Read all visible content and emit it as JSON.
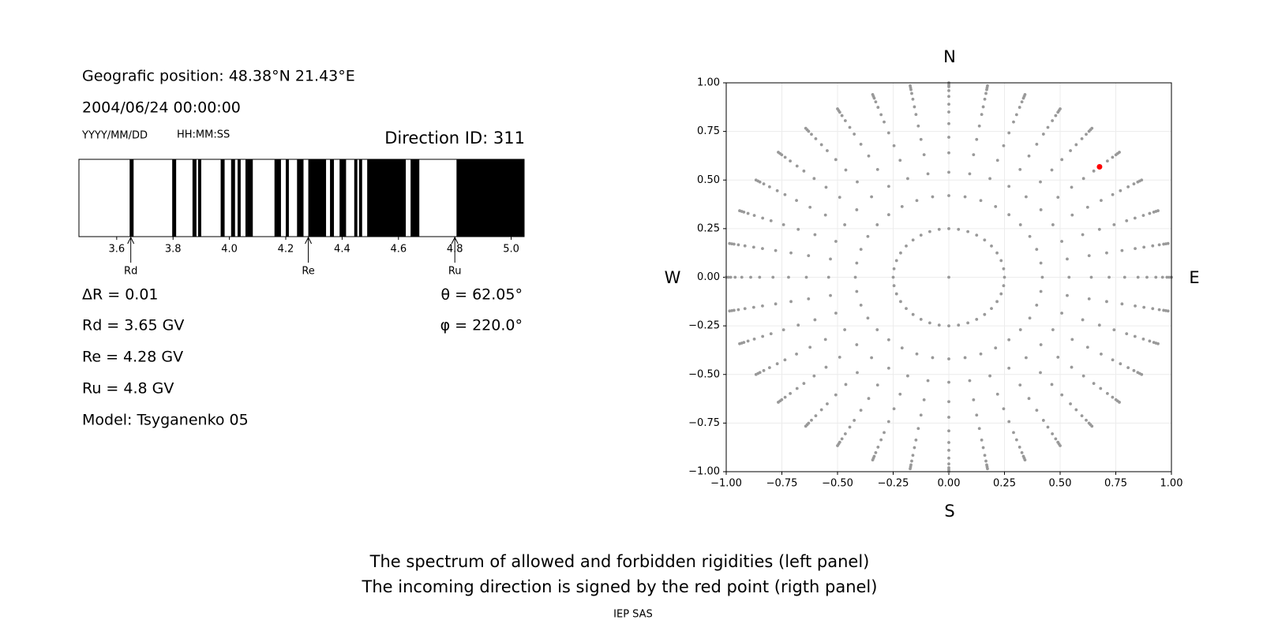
{
  "info": {
    "position": "Geografic position: 48.38°N 21.43°E",
    "datetime": "2004/06/24 00:00:00",
    "date_format": "YYYY/MM/DD",
    "time_format": "HH:MM:SS",
    "direction": "Direction ID: 311",
    "delta": "ΔR = 0.01",
    "theta": "θ = 62.05°",
    "phi": "φ = 220.0°",
    "rd": "Rd = 3.65 GV",
    "re": "Re = 4.28 GV",
    "ru": "Ru = 4.8 GV",
    "model": "Model: Tsyganenko 05"
  },
  "footer": {
    "line1": "The spectrum of allowed and forbidden rigidities (left panel)",
    "line2": "The incoming direction is signed by the red point (rigth panel)",
    "credit": "IEP SAS"
  },
  "chart_data": [
    {
      "type": "spectrum",
      "xlim": [
        3.466,
        5.046
      ],
      "xticks": [
        3.6,
        3.8,
        {
          "value": 4,
          "label": "4.0"
        },
        4.2,
        4.4,
        4.6,
        4.8,
        {
          "value": 5,
          "label": "5.0"
        }
      ],
      "color": "#000000",
      "forbidden": [
        [
          3.646,
          3.66
        ],
        [
          3.797,
          3.811
        ],
        [
          3.869,
          3.883
        ],
        [
          3.889,
          3.9
        ],
        [
          3.969,
          3.983
        ],
        [
          4.006,
          4.02
        ],
        [
          4.029,
          4.04
        ],
        [
          4.057,
          4.083
        ],
        [
          4.16,
          4.183
        ],
        [
          4.2,
          4.211
        ],
        [
          4.24,
          4.263
        ],
        [
          4.28,
          4.343
        ],
        [
          4.357,
          4.371
        ],
        [
          4.391,
          4.414
        ],
        [
          4.443,
          4.454
        ],
        [
          4.46,
          4.471
        ],
        [
          4.489,
          4.626
        ],
        [
          4.643,
          4.674
        ],
        [
          4.806,
          5.046
        ]
      ],
      "annotations": [
        {
          "label": "Rd",
          "x": 3.65
        },
        {
          "label": "Re",
          "x": 4.28
        },
        {
          "label": "Ru",
          "x": 4.8
        }
      ]
    },
    {
      "type": "scatter",
      "xlim": [
        -1,
        1
      ],
      "ylim": [
        -1,
        1
      ],
      "xticks": [
        {
          "value": -1,
          "label": "−1.00"
        },
        {
          "value": -0.75,
          "label": "−0.75"
        },
        {
          "value": -0.5,
          "label": "−0.50"
        },
        {
          "value": -0.25,
          "label": "−0.25"
        },
        {
          "value": 0,
          "label": "0.00"
        },
        0.25,
        {
          "value": 0.5,
          "label": "0.50"
        },
        0.75,
        {
          "value": 1,
          "label": "1.00"
        }
      ],
      "yticks": [
        {
          "value": -1,
          "label": "−1.00"
        },
        {
          "value": -0.75,
          "label": "−0.75"
        },
        {
          "value": -0.5,
          "label": "−0.50"
        },
        {
          "value": -0.25,
          "label": "−0.25"
        },
        {
          "value": 0,
          "label": "0.00"
        },
        0.25,
        {
          "value": 0.5,
          "label": "0.50"
        },
        0.75,
        {
          "value": 1,
          "label": "1.00"
        }
      ],
      "grid": true,
      "directions": {
        "top": "N",
        "bottom": "S",
        "left": "W",
        "right": "E"
      },
      "grid_points": {
        "color": "#999999",
        "radius": [
          0.25,
          0.42,
          0.54,
          0.64,
          0.72,
          0.79,
          0.85,
          0.89,
          0.93,
          0.96,
          0.98,
          0.99,
          1.0
        ],
        "angle": [
          0,
          10,
          20,
          30,
          40,
          50,
          60,
          70,
          80,
          90,
          100,
          110,
          120,
          130,
          140,
          150,
          160,
          170,
          180,
          190,
          200,
          210,
          220,
          230,
          240,
          250,
          260,
          270,
          280,
          290,
          300,
          310,
          320,
          330,
          340,
          350
        ]
      },
      "center_point": {
        "color": "#999999",
        "x": 0,
        "y": 0
      },
      "highlight": {
        "color": "#ff0000",
        "x": 0.677,
        "y": 0.568
      }
    }
  ]
}
